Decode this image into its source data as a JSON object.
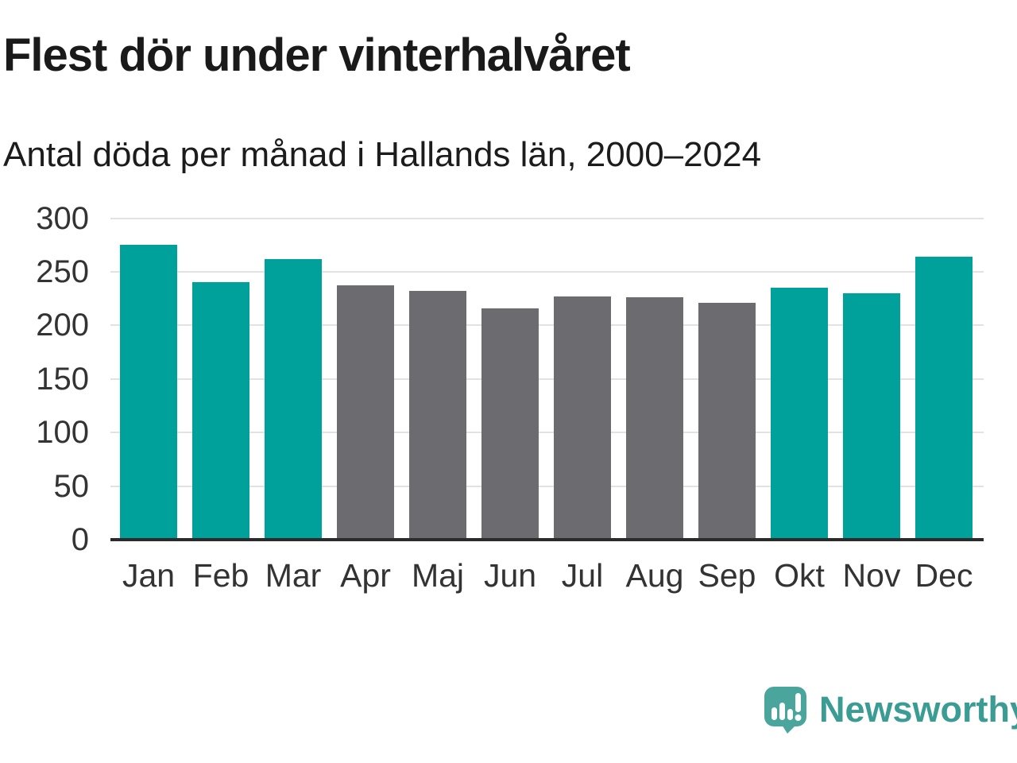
{
  "header": {
    "title": "Flest dör under vinterhalvåret",
    "subtitle": "Antal döda per månad i Hallands län, 2000–2024"
  },
  "chart_data": {
    "type": "bar",
    "title": "Flest dör under vinterhalvåret",
    "subtitle": "Antal döda per månad i Hallands län, 2000–2024",
    "categories": [
      "Jan",
      "Feb",
      "Mar",
      "Apr",
      "Maj",
      "Jun",
      "Jul",
      "Aug",
      "Sep",
      "Okt",
      "Nov",
      "Dec"
    ],
    "values": [
      275,
      240,
      262,
      237,
      232,
      216,
      227,
      226,
      221,
      235,
      230,
      264
    ],
    "xlabel": "",
    "ylabel": "",
    "ylim": [
      0,
      300
    ],
    "yticks": [
      0,
      50,
      100,
      150,
      200,
      250,
      300
    ],
    "grid": "horizontal-light",
    "legend": "none",
    "highlight_rule": "winter months (Jan, Feb, Mar, Okt, Nov, Dec) in teal; summer months in gray",
    "winter_months": [
      "Jan",
      "Feb",
      "Mar",
      "Okt",
      "Nov",
      "Dec"
    ]
  },
  "colors": {
    "bar_winter": "#00a09b",
    "bar_summer": "#6c6b70",
    "gridline": "#e2e2e2",
    "baseline": "#2b2b2b",
    "axis_text": "#333333",
    "title_text": "#1a1a1a",
    "logo_bubble": "#4aa69d",
    "logo_text": "#3b9c93"
  },
  "footer": {
    "logo_text": "Newsworthy"
  }
}
